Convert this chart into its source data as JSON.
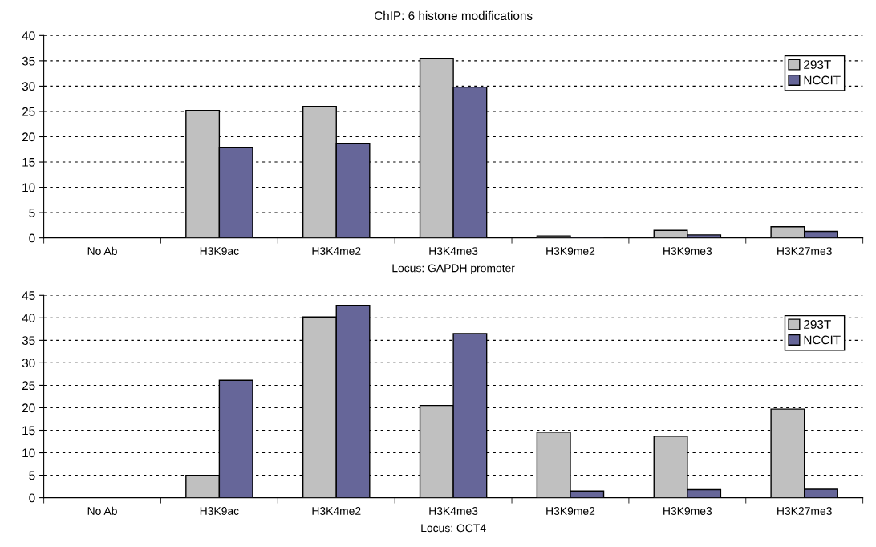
{
  "chart_data": [
    {
      "type": "bar",
      "title": "ChIP: 6 histone modifications",
      "xlabel": "Locus: GAPDH promoter",
      "categories": [
        "No Ab",
        "H3K9ac",
        "H3K4me2",
        "H3K4me3",
        "H3K9me2",
        "H3K9me3",
        "H3K27me3"
      ],
      "series": [
        {
          "name": "293T",
          "color": "#c0c0c0",
          "values": [
            0,
            25.2,
            26,
            35.5,
            0.4,
            1.5,
            2.2
          ]
        },
        {
          "name": "NCCIT",
          "color": "#666699",
          "values": [
            0,
            17.9,
            18.7,
            29.8,
            0.1,
            0.6,
            1.3
          ]
        }
      ],
      "ylim": [
        0,
        40
      ],
      "yticks": [
        0,
        5,
        10,
        15,
        20,
        25,
        30,
        35,
        40
      ],
      "grid": "y",
      "legend": "top right"
    },
    {
      "type": "bar",
      "xlabel": "Locus: OCT4",
      "categories": [
        "No Ab",
        "H3K9ac",
        "H3K4me2",
        "H3K4me3",
        "H3K9me2",
        "H3K9me3",
        "H3K27me3"
      ],
      "series": [
        {
          "name": "293T",
          "color": "#c0c0c0",
          "values": [
            0,
            5,
            40.2,
            20.5,
            14.6,
            13.7,
            19.7
          ]
        },
        {
          "name": "NCCIT",
          "color": "#666699",
          "values": [
            0,
            26.1,
            42.8,
            36.5,
            1.5,
            1.8,
            1.9
          ]
        }
      ],
      "ylim": [
        0,
        45
      ],
      "yticks": [
        0,
        5,
        10,
        15,
        20,
        25,
        30,
        35,
        40,
        45
      ],
      "grid": "y",
      "legend": "top right"
    }
  ]
}
